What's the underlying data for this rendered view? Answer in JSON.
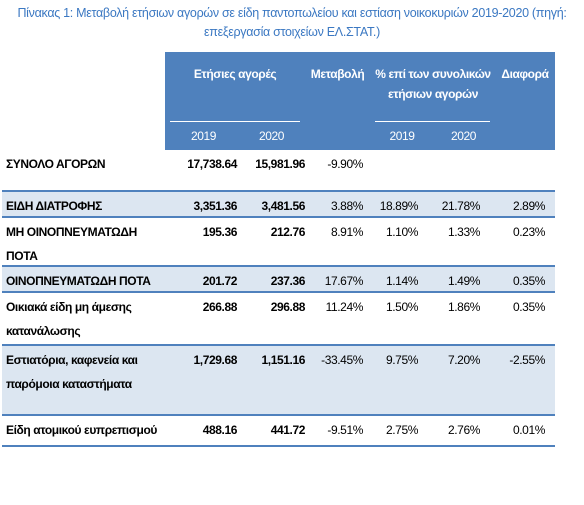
{
  "title": "Πίνακας 1: Μεταβολή ετήσιων αγορών σε είδη παντοπωλείου και εστίαση νοικοκυριών 2019-2020 (πηγή: επεξεργασία στοιχείων ΕΛ.ΣΤΑΤ.)",
  "table": {
    "header": {
      "purchases": "Ετήσιες αγορές",
      "change": "Μεταβολή",
      "share": "% επί των συνολικών ετήσιων αγορών",
      "difference": "Διαφορά",
      "years": [
        "2019",
        "2020",
        "2019",
        "2020"
      ]
    },
    "rows": [
      [
        "ΣΥΝΟΛΟ ΑΓΟΡΩΝ",
        "17,738.64",
        "15,981.96",
        "-9.90%"
      ],
      [
        "ΕΙΔΗ ΔΙΑΤΡΟΦΗΣ",
        "3,351.36",
        "3,481.56",
        "3.88%",
        "18.89%",
        "21.78%",
        "2.89%"
      ],
      [
        "ΜΗ ΟΙΝΟΠΝΕΥΜΑΤΩΔΗ ΠΟΤΑ",
        "195.36",
        "212.76",
        "8.91%",
        "1.10%",
        "1.33%",
        "0.23%"
      ],
      [
        "ΟΙΝΟΠΝΕΥΜΑΤΩΔΗ ΠΟΤΑ",
        "201.72",
        "237.36",
        "17.67%",
        "1.14%",
        "1.49%",
        "0.35%"
      ],
      [
        "Οικιακά είδη μη άμεσης κατανάλωσης",
        "266.88",
        "296.88",
        "11.24%",
        "1.50%",
        "1.86%",
        "0.35%"
      ],
      [
        "Εστιατόρια, καφενεία και παρόμοια καταστήματα",
        "1,729.68",
        "1,151.16",
        "-33.45%",
        "9.75%",
        "7.20%",
        "-2.55%"
      ],
      [
        "Είδη ατομικού ευπρεπισμού",
        "488.16",
        "441.72",
        "-9.51%",
        "2.75%",
        "2.76%",
        "0.01%"
      ]
    ]
  }
}
